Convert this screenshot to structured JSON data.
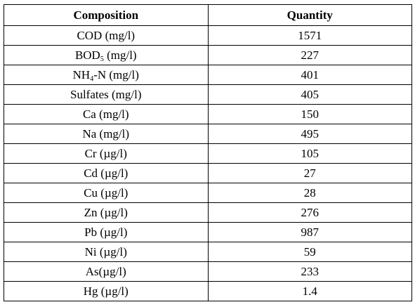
{
  "table": {
    "headers": {
      "composition": "Composition",
      "quantity": "Quantity"
    },
    "rows": [
      {
        "name": "COD (mg/l)",
        "value": "1571"
      },
      {
        "name_pre": "BOD",
        "name_sub": "5",
        "name_post": " (mg/l)",
        "value": "227"
      },
      {
        "name_pre": "NH",
        "name_sub": "4",
        "name_post": "-N (mg/l)",
        "value": "401"
      },
      {
        "name": "Sulfates (mg/l)",
        "value": "405"
      },
      {
        "name": "Ca (mg/l)",
        "value": "150"
      },
      {
        "name": "Na (mg/l)",
        "value": "495"
      },
      {
        "name": "Cr (µg/l)",
        "value": "105"
      },
      {
        "name": "Cd (µg/l)",
        "value": "27"
      },
      {
        "name": "Cu (µg/l)",
        "value": "28"
      },
      {
        "name": "Zn (µg/l)",
        "value": "276"
      },
      {
        "name": "Pb (µg/l)",
        "value": "987"
      },
      {
        "name": "Ni (µg/l)",
        "value": "59"
      },
      {
        "name": "As(µg/l)",
        "value": "233"
      },
      {
        "name": "Hg (µg/l)",
        "value": "1.4"
      }
    ]
  }
}
